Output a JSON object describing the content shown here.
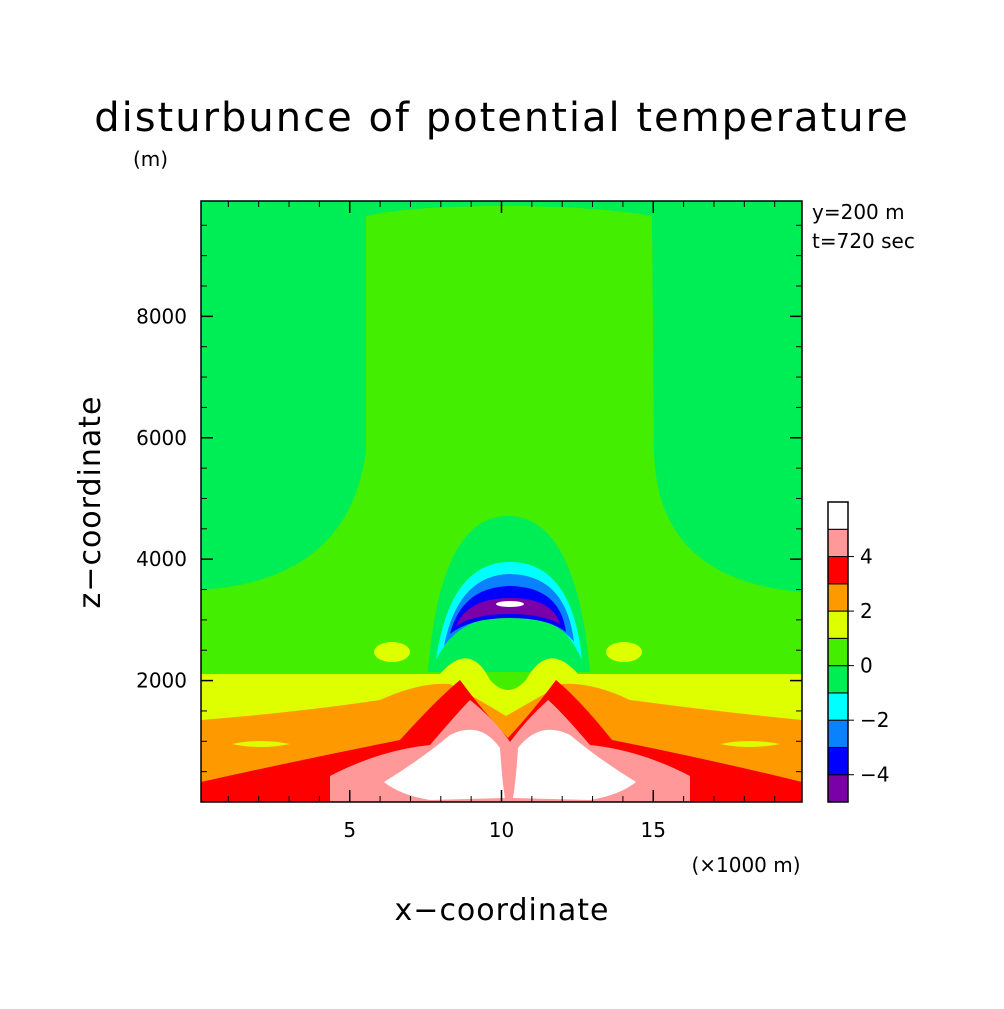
{
  "chart_data": {
    "type": "heatmap",
    "title": "disturbunce of potential temperature",
    "y_unit": "(m)",
    "xlabel": "x−coordinate",
    "ylabel": "z−coordinate",
    "x_unit": "(×1000 m)",
    "annotations": [
      "y=200 m",
      "t=720 sec"
    ],
    "xlim": [
      0.1,
      19.9
    ],
    "ylim": [
      0,
      9900
    ],
    "x_ticks": [
      5,
      10,
      15
    ],
    "x_tick_labels": [
      "5",
      "10",
      "15"
    ],
    "y_ticks": [
      2000,
      4000,
      6000,
      8000
    ],
    "y_tick_labels": [
      "2000",
      "4000",
      "6000",
      "8000"
    ],
    "colorbar": {
      "levels": [
        -5,
        -4,
        -3,
        -2,
        -1,
        0,
        1,
        2,
        3,
        4,
        5
      ],
      "tick_labels": [
        "4",
        "2",
        "0",
        "−2",
        "−4"
      ],
      "tick_values": [
        4,
        2,
        0,
        -2,
        -4
      ],
      "colors": [
        "#7b00a8",
        "#0000ff",
        "#0a82ff",
        "#00ffff",
        "#00ee55",
        "#44ee00",
        "#ddff00",
        "#ff9900",
        "#ff0000",
        "#ff9999"
      ],
      "above_max_color": "#ffffff"
    },
    "grid": false,
    "legend": "colorbar right"
  }
}
